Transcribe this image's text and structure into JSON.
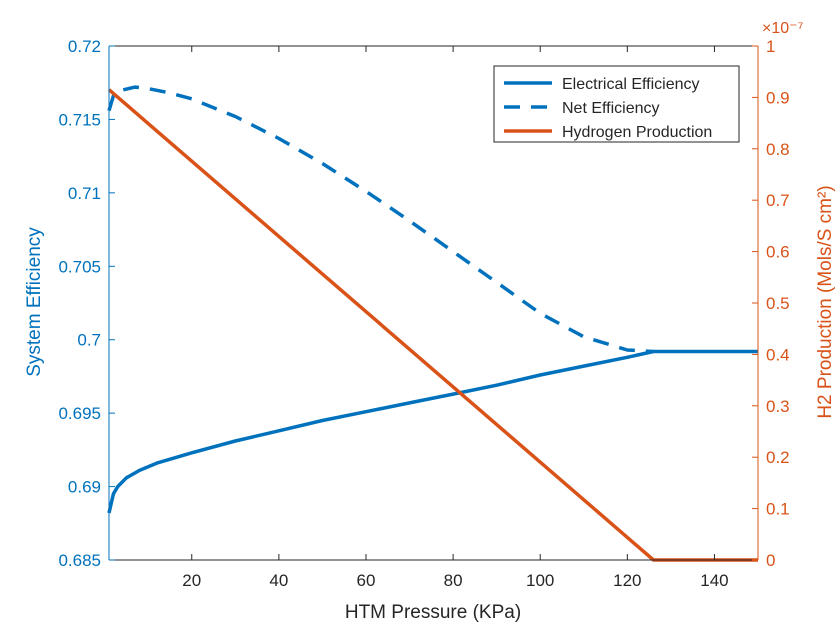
{
  "chart_data": {
    "type": "line",
    "title": "",
    "xlabel": "HTM Pressure (KPa)",
    "xlim": [
      1,
      150
    ],
    "xticks": [
      "20",
      "40",
      "60",
      "80",
      "100",
      "120",
      "140"
    ],
    "xtick_values": [
      20,
      40,
      60,
      80,
      100,
      120,
      140
    ],
    "left_axis": {
      "label": "System Efficiency",
      "ylim": [
        0.685,
        0.72
      ],
      "ticks": [
        "0.685",
        "0.69",
        "0.695",
        "0.7",
        "0.705",
        "0.71",
        "0.715",
        "0.72"
      ],
      "tick_values": [
        0.685,
        0.69,
        0.695,
        0.7,
        0.705,
        0.71,
        0.715,
        0.72
      ],
      "color": "#0072BD"
    },
    "right_axis": {
      "label": "H2 Production (Mols/S cm²)",
      "exponent_label": "×10⁻⁷",
      "ylim": [
        0,
        1
      ],
      "ticks": [
        "0",
        "0.1",
        "0.2",
        "0.3",
        "0.4",
        "0.5",
        "0.6",
        "0.7",
        "0.8",
        "0.9",
        "1"
      ],
      "tick_values": [
        0,
        0.1,
        0.2,
        0.3,
        0.4,
        0.5,
        0.6,
        0.7,
        0.8,
        0.9,
        1
      ],
      "color": "#D95319"
    },
    "grid": false,
    "legend_position": "top-right",
    "series": [
      {
        "name": "Electrical Efficiency",
        "axis": "left",
        "color": "#0072BD",
        "style": "solid",
        "x": [
          1,
          2,
          3,
          5,
          8,
          12,
          20,
          30,
          40,
          50,
          60,
          70,
          80,
          90,
          100,
          110,
          120,
          126,
          130,
          140,
          150
        ],
        "y": [
          0.6882,
          0.6895,
          0.69,
          0.6906,
          0.6911,
          0.6916,
          0.6923,
          0.6931,
          0.6938,
          0.6945,
          0.6951,
          0.6957,
          0.6963,
          0.6969,
          0.6976,
          0.6982,
          0.6988,
          0.6992,
          0.6992,
          0.6992,
          0.6992
        ]
      },
      {
        "name": "Net Efficiency",
        "axis": "left",
        "color": "#0072BD",
        "style": "dashed",
        "x": [
          1,
          2,
          4,
          7,
          10,
          15,
          20,
          30,
          40,
          50,
          60,
          70,
          80,
          90,
          100,
          110,
          120,
          126
        ],
        "y": [
          0.7156,
          0.7166,
          0.717,
          0.7172,
          0.7171,
          0.7168,
          0.7164,
          0.7152,
          0.7137,
          0.712,
          0.7101,
          0.7081,
          0.706,
          0.7039,
          0.7018,
          0.7002,
          0.6993,
          0.6992
        ]
      },
      {
        "name": "Hydrogen Production",
        "axis": "right",
        "color": "#D95319",
        "style": "solid",
        "x": [
          1,
          126,
          150
        ],
        "y": [
          0.915,
          0.0,
          0.0
        ]
      }
    ]
  }
}
